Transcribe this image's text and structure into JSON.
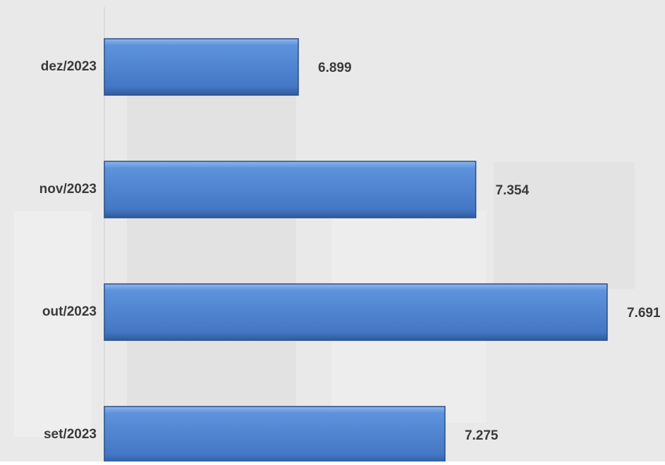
{
  "chart_data": {
    "type": "bar",
    "orientation": "horizontal",
    "categories": [
      "dez/2023",
      "nov/2023",
      "out/2023",
      "set/2023"
    ],
    "values": [
      6899,
      7354,
      7691,
      7275
    ],
    "value_labels": [
      "6.899",
      "7.354",
      "7.691",
      "7.275"
    ],
    "color": "#4f83cc"
  }
}
